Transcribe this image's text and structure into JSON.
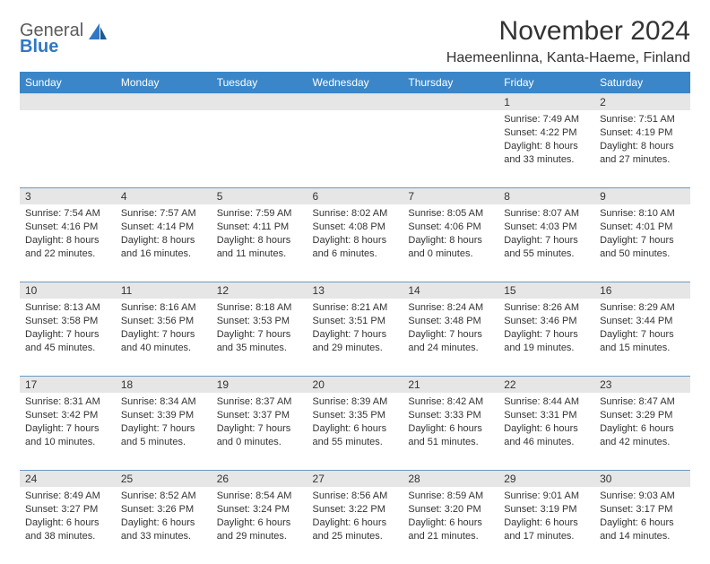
{
  "brand": {
    "general": "General",
    "blue": "Blue"
  },
  "title": "November 2024",
  "location": "Haemeenlinna, Kanta-Haeme, Finland",
  "colors": {
    "header_bg": "#3b86c8",
    "daynum_bg": "#e6e6e6",
    "text": "#333333",
    "logo_gray": "#5b5b5b",
    "logo_blue": "#2f78c4"
  },
  "weekdays": [
    "Sunday",
    "Monday",
    "Tuesday",
    "Wednesday",
    "Thursday",
    "Friday",
    "Saturday"
  ],
  "weeks": [
    [
      null,
      null,
      null,
      null,
      null,
      {
        "n": "1",
        "sr": "7:49 AM",
        "ss": "4:22 PM",
        "dl": "8 hours and 33 minutes."
      },
      {
        "n": "2",
        "sr": "7:51 AM",
        "ss": "4:19 PM",
        "dl": "8 hours and 27 minutes."
      }
    ],
    [
      {
        "n": "3",
        "sr": "7:54 AM",
        "ss": "4:16 PM",
        "dl": "8 hours and 22 minutes."
      },
      {
        "n": "4",
        "sr": "7:57 AM",
        "ss": "4:14 PM",
        "dl": "8 hours and 16 minutes."
      },
      {
        "n": "5",
        "sr": "7:59 AM",
        "ss": "4:11 PM",
        "dl": "8 hours and 11 minutes."
      },
      {
        "n": "6",
        "sr": "8:02 AM",
        "ss": "4:08 PM",
        "dl": "8 hours and 6 minutes."
      },
      {
        "n": "7",
        "sr": "8:05 AM",
        "ss": "4:06 PM",
        "dl": "8 hours and 0 minutes."
      },
      {
        "n": "8",
        "sr": "8:07 AM",
        "ss": "4:03 PM",
        "dl": "7 hours and 55 minutes."
      },
      {
        "n": "9",
        "sr": "8:10 AM",
        "ss": "4:01 PM",
        "dl": "7 hours and 50 minutes."
      }
    ],
    [
      {
        "n": "10",
        "sr": "8:13 AM",
        "ss": "3:58 PM",
        "dl": "7 hours and 45 minutes."
      },
      {
        "n": "11",
        "sr": "8:16 AM",
        "ss": "3:56 PM",
        "dl": "7 hours and 40 minutes."
      },
      {
        "n": "12",
        "sr": "8:18 AM",
        "ss": "3:53 PM",
        "dl": "7 hours and 35 minutes."
      },
      {
        "n": "13",
        "sr": "8:21 AM",
        "ss": "3:51 PM",
        "dl": "7 hours and 29 minutes."
      },
      {
        "n": "14",
        "sr": "8:24 AM",
        "ss": "3:48 PM",
        "dl": "7 hours and 24 minutes."
      },
      {
        "n": "15",
        "sr": "8:26 AM",
        "ss": "3:46 PM",
        "dl": "7 hours and 19 minutes."
      },
      {
        "n": "16",
        "sr": "8:29 AM",
        "ss": "3:44 PM",
        "dl": "7 hours and 15 minutes."
      }
    ],
    [
      {
        "n": "17",
        "sr": "8:31 AM",
        "ss": "3:42 PM",
        "dl": "7 hours and 10 minutes."
      },
      {
        "n": "18",
        "sr": "8:34 AM",
        "ss": "3:39 PM",
        "dl": "7 hours and 5 minutes."
      },
      {
        "n": "19",
        "sr": "8:37 AM",
        "ss": "3:37 PM",
        "dl": "7 hours and 0 minutes."
      },
      {
        "n": "20",
        "sr": "8:39 AM",
        "ss": "3:35 PM",
        "dl": "6 hours and 55 minutes."
      },
      {
        "n": "21",
        "sr": "8:42 AM",
        "ss": "3:33 PM",
        "dl": "6 hours and 51 minutes."
      },
      {
        "n": "22",
        "sr": "8:44 AM",
        "ss": "3:31 PM",
        "dl": "6 hours and 46 minutes."
      },
      {
        "n": "23",
        "sr": "8:47 AM",
        "ss": "3:29 PM",
        "dl": "6 hours and 42 minutes."
      }
    ],
    [
      {
        "n": "24",
        "sr": "8:49 AM",
        "ss": "3:27 PM",
        "dl": "6 hours and 38 minutes."
      },
      {
        "n": "25",
        "sr": "8:52 AM",
        "ss": "3:26 PM",
        "dl": "6 hours and 33 minutes."
      },
      {
        "n": "26",
        "sr": "8:54 AM",
        "ss": "3:24 PM",
        "dl": "6 hours and 29 minutes."
      },
      {
        "n": "27",
        "sr": "8:56 AM",
        "ss": "3:22 PM",
        "dl": "6 hours and 25 minutes."
      },
      {
        "n": "28",
        "sr": "8:59 AM",
        "ss": "3:20 PM",
        "dl": "6 hours and 21 minutes."
      },
      {
        "n": "29",
        "sr": "9:01 AM",
        "ss": "3:19 PM",
        "dl": "6 hours and 17 minutes."
      },
      {
        "n": "30",
        "sr": "9:03 AM",
        "ss": "3:17 PM",
        "dl": "6 hours and 14 minutes."
      }
    ]
  ],
  "labels": {
    "sunrise": "Sunrise: ",
    "sunset": "Sunset: ",
    "daylight": "Daylight: "
  }
}
